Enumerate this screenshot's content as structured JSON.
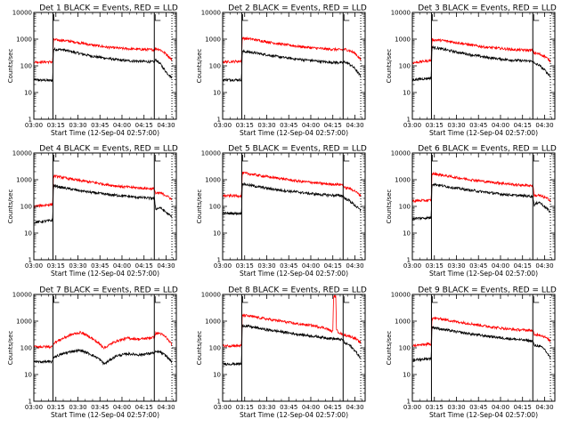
{
  "figure": {
    "description_title_template": "Det {n}  BLACK = Events, RED = LLD",
    "xlabel": "Start Time (12-Sep-04 02:57:00)",
    "ylabel": "Counts/sec",
    "xticks": [
      "03:00",
      "03:15",
      "03:30",
      "03:45",
      "04:00",
      "04:15",
      "04:30"
    ],
    "yticks": [
      "1",
      "10",
      "100",
      "1000",
      "10000"
    ],
    "colors": {
      "events": "#000000",
      "lld": "#ff0000",
      "axis": "#000000"
    }
  },
  "chart_data": [
    {
      "type": "line",
      "title": "Det 1  BLACK = Events, RED = LLD",
      "xlabel": "Start Time (12-Sep-04 02:57:00)",
      "ylabel": "Counts/sec",
      "x_unit": "minutes after 03:00",
      "xlim": [
        0,
        97
      ],
      "ylim": [
        1,
        10000
      ],
      "yscale": "log",
      "markers": [
        {
          "x": 13,
          "style": "solid"
        },
        {
          "x": 82,
          "style": "solid"
        },
        {
          "x": 94,
          "style": "dotted"
        }
      ],
      "series": [
        {
          "name": "Events",
          "color": "#000000",
          "x": [
            0,
            12.9,
            13.3,
            20,
            30,
            40,
            50,
            60,
            70,
            82,
            83,
            86,
            90,
            94
          ],
          "y": [
            30,
            28,
            420,
            400,
            300,
            230,
            190,
            160,
            150,
            140,
            170,
            120,
            60,
            35
          ]
        },
        {
          "name": "LLD",
          "color": "#ff0000",
          "x": [
            0,
            12.9,
            13.3,
            20,
            30,
            40,
            50,
            60,
            70,
            82,
            83,
            86,
            90,
            94
          ],
          "y": [
            140,
            140,
            950,
            900,
            750,
            600,
            500,
            450,
            420,
            400,
            450,
            400,
            280,
            170
          ]
        }
      ]
    },
    {
      "type": "line",
      "title": "Det 2  BLACK = Events, RED = LLD",
      "xlabel": "Start Time (12-Sep-04 02:57:00)",
      "ylabel": "Counts/sec",
      "x_unit": "minutes after 03:00",
      "xlim": [
        0,
        97
      ],
      "ylim": [
        1,
        10000
      ],
      "yscale": "log",
      "markers": [
        {
          "x": 13,
          "style": "solid"
        },
        {
          "x": 82,
          "style": "solid"
        },
        {
          "x": 94,
          "style": "dotted"
        }
      ],
      "series": [
        {
          "name": "Events",
          "color": "#000000",
          "x": [
            0,
            12.9,
            13.3,
            20,
            30,
            40,
            50,
            60,
            70,
            82,
            83,
            86,
            90,
            94
          ],
          "y": [
            30,
            30,
            350,
            320,
            260,
            210,
            180,
            160,
            140,
            130,
            140,
            120,
            80,
            40
          ]
        },
        {
          "name": "LLD",
          "color": "#ff0000",
          "x": [
            0,
            12.9,
            13.3,
            20,
            30,
            40,
            50,
            60,
            70,
            82,
            83,
            86,
            90,
            94
          ],
          "y": [
            140,
            150,
            1100,
            1000,
            800,
            650,
            550,
            480,
            430,
            400,
            420,
            380,
            300,
            170
          ]
        }
      ]
    },
    {
      "type": "line",
      "title": "Det 3  BLACK = Events, RED = LLD",
      "xlabel": "Start Time (12-Sep-04 02:57:00)",
      "ylabel": "Counts/sec",
      "x_unit": "minutes after 03:00",
      "xlim": [
        0,
        97
      ],
      "ylim": [
        1,
        10000
      ],
      "yscale": "log",
      "markers": [
        {
          "x": 13,
          "style": "solid"
        },
        {
          "x": 82,
          "style": "solid"
        },
        {
          "x": 94,
          "style": "dotted"
        }
      ],
      "series": [
        {
          "name": "Events",
          "color": "#000000",
          "x": [
            0,
            12.9,
            13.3,
            20,
            30,
            40,
            50,
            60,
            70,
            82,
            83,
            86,
            90,
            94
          ],
          "y": [
            30,
            35,
            500,
            430,
            330,
            260,
            210,
            180,
            160,
            150,
            120,
            110,
            70,
            40
          ]
        },
        {
          "name": "LLD",
          "color": "#ff0000",
          "x": [
            0,
            12.9,
            13.3,
            20,
            30,
            40,
            50,
            60,
            70,
            82,
            83,
            86,
            90,
            94
          ],
          "y": [
            130,
            160,
            950,
            900,
            750,
            600,
            500,
            450,
            400,
            380,
            300,
            280,
            230,
            150
          ]
        }
      ]
    },
    {
      "type": "line",
      "title": "Det 4  BLACK = Events, RED = LLD",
      "xlabel": "Start Time (12-Sep-04 02:57:00)",
      "ylabel": "Counts/sec",
      "x_unit": "minutes after 03:00",
      "xlim": [
        0,
        97
      ],
      "ylim": [
        1,
        10000
      ],
      "yscale": "log",
      "markers": [
        {
          "x": 13,
          "style": "solid"
        },
        {
          "x": 82,
          "style": "solid"
        },
        {
          "x": 94,
          "style": "dotted"
        }
      ],
      "series": [
        {
          "name": "Events",
          "color": "#000000",
          "x": [
            0,
            12.9,
            13.3,
            20,
            30,
            40,
            50,
            60,
            70,
            82,
            83,
            86,
            90,
            94
          ],
          "y": [
            25,
            30,
            600,
            500,
            400,
            330,
            280,
            250,
            220,
            200,
            80,
            90,
            60,
            40
          ]
        },
        {
          "name": "LLD",
          "color": "#ff0000",
          "x": [
            0,
            12.9,
            13.3,
            20,
            30,
            40,
            50,
            60,
            70,
            82,
            83,
            86,
            90,
            94
          ],
          "y": [
            100,
            120,
            1400,
            1200,
            950,
            800,
            650,
            550,
            500,
            450,
            300,
            320,
            260,
            180
          ]
        }
      ]
    },
    {
      "type": "line",
      "title": "Det 5  BLACK = Events, RED = LLD",
      "xlabel": "Start Time (12-Sep-04 02:57:00)",
      "ylabel": "Counts/sec",
      "x_unit": "minutes after 03:00",
      "xlim": [
        0,
        97
      ],
      "ylim": [
        1,
        10000
      ],
      "yscale": "log",
      "markers": [
        {
          "x": 13,
          "style": "solid"
        },
        {
          "x": 82,
          "style": "solid"
        },
        {
          "x": 94,
          "style": "dotted"
        }
      ],
      "series": [
        {
          "name": "Events",
          "color": "#000000",
          "x": [
            0,
            12.9,
            13.3,
            20,
            30,
            40,
            50,
            60,
            70,
            82,
            83,
            86,
            90,
            94
          ],
          "y": [
            55,
            55,
            700,
            600,
            480,
            400,
            350,
            300,
            270,
            250,
            200,
            170,
            110,
            70
          ]
        },
        {
          "name": "LLD",
          "color": "#ff0000",
          "x": [
            0,
            12.9,
            13.3,
            20,
            30,
            40,
            50,
            60,
            70,
            82,
            83,
            86,
            90,
            94
          ],
          "y": [
            250,
            250,
            1800,
            1600,
            1300,
            1100,
            900,
            800,
            700,
            650,
            500,
            480,
            380,
            250
          ]
        }
      ]
    },
    {
      "type": "line",
      "title": "Det 6  BLACK = Events, RED = LLD",
      "xlabel": "Start Time (12-Sep-04 02:57:00)",
      "ylabel": "Counts/sec",
      "x_unit": "minutes after 03:00",
      "xlim": [
        0,
        97
      ],
      "ylim": [
        1,
        10000
      ],
      "yscale": "log",
      "markers": [
        {
          "x": 13,
          "style": "solid"
        },
        {
          "x": 82,
          "style": "solid"
        },
        {
          "x": 94,
          "style": "dotted"
        }
      ],
      "series": [
        {
          "name": "Events",
          "color": "#000000",
          "x": [
            0,
            12.9,
            13.3,
            20,
            30,
            40,
            50,
            60,
            70,
            82,
            83,
            86,
            90,
            94
          ],
          "y": [
            35,
            38,
            700,
            600,
            480,
            400,
            340,
            290,
            260,
            240,
            110,
            150,
            100,
            60
          ]
        },
        {
          "name": "LLD",
          "color": "#ff0000",
          "x": [
            0,
            12.9,
            13.3,
            20,
            30,
            40,
            50,
            60,
            70,
            82,
            83,
            86,
            90,
            94
          ],
          "y": [
            160,
            170,
            1700,
            1500,
            1200,
            1000,
            850,
            750,
            650,
            600,
            250,
            260,
            220,
            170
          ]
        }
      ]
    },
    {
      "type": "line",
      "title": "Det 7  BLACK = Events, RED = LLD",
      "xlabel": "Start Time (12-Sep-04 02:57:00)",
      "ylabel": "Counts/sec",
      "x_unit": "minutes after 03:00",
      "xlim": [
        0,
        97
      ],
      "ylim": [
        1,
        10000
      ],
      "yscale": "log",
      "markers": [
        {
          "x": 13,
          "style": "solid"
        },
        {
          "x": 82,
          "style": "solid"
        },
        {
          "x": 94,
          "style": "dotted"
        }
      ],
      "series": [
        {
          "name": "Events",
          "color": "#000000",
          "x": [
            0,
            12.9,
            13.3,
            20,
            26,
            32,
            38,
            44,
            48,
            56,
            64,
            72,
            82,
            83,
            86,
            90,
            94
          ],
          "y": [
            30,
            30,
            45,
            60,
            75,
            80,
            60,
            40,
            25,
            50,
            60,
            55,
            65,
            70,
            70,
            50,
            30
          ]
        },
        {
          "name": "LLD",
          "color": "#ff0000",
          "x": [
            0,
            12.9,
            13.3,
            20,
            26,
            32,
            38,
            44,
            48,
            56,
            64,
            72,
            82,
            83,
            86,
            90,
            94
          ],
          "y": [
            110,
            110,
            150,
            230,
            320,
            380,
            260,
            150,
            100,
            180,
            230,
            210,
            250,
            350,
            350,
            250,
            130
          ]
        }
      ]
    },
    {
      "type": "line",
      "title": "Det 8  BLACK = Events, RED = LLD",
      "xlabel": "Start Time (12-Sep-04 02:57:00)",
      "ylabel": "Counts/sec",
      "x_unit": "minutes after 03:00",
      "xlim": [
        0,
        97
      ],
      "ylim": [
        1,
        10000
      ],
      "yscale": "log",
      "markers": [
        {
          "x": 13,
          "style": "solid"
        },
        {
          "x": 82,
          "style": "solid"
        },
        {
          "x": 94,
          "style": "dotted"
        }
      ],
      "series": [
        {
          "name": "Events",
          "color": "#000000",
          "x": [
            0,
            12.9,
            13.3,
            20,
            30,
            40,
            50,
            60,
            70,
            82,
            83,
            86,
            90,
            94
          ],
          "y": [
            25,
            25,
            700,
            600,
            480,
            400,
            330,
            280,
            240,
            200,
            150,
            130,
            80,
            40
          ]
        },
        {
          "name": "LLD",
          "color": "#ff0000",
          "x": [
            0,
            12.9,
            13.3,
            20,
            30,
            40,
            50,
            60,
            70,
            75,
            75.5,
            77,
            77.5,
            82,
            83,
            86,
            90,
            94
          ],
          "y": [
            120,
            120,
            1700,
            1500,
            1200,
            1000,
            800,
            700,
            550,
            400,
            8000,
            9000,
            450,
            300,
            300,
            280,
            230,
            150
          ]
        }
      ]
    },
    {
      "type": "line",
      "title": "Det 9  BLACK = Events, RED = LLD",
      "xlabel": "Start Time (12-Sep-04 02:57:00)",
      "ylabel": "Counts/sec",
      "x_unit": "minutes after 03:00",
      "xlim": [
        0,
        97
      ],
      "ylim": [
        1,
        10000
      ],
      "yscale": "log",
      "markers": [
        {
          "x": 13,
          "style": "solid"
        },
        {
          "x": 82,
          "style": "solid"
        },
        {
          "x": 94,
          "style": "dotted"
        }
      ],
      "series": [
        {
          "name": "Events",
          "color": "#000000",
          "x": [
            0,
            12.9,
            13.3,
            20,
            30,
            40,
            50,
            60,
            70,
            82,
            83,
            86,
            90,
            94
          ],
          "y": [
            35,
            40,
            600,
            500,
            400,
            330,
            280,
            240,
            210,
            180,
            120,
            120,
            90,
            40
          ]
        },
        {
          "name": "LLD",
          "color": "#ff0000",
          "x": [
            0,
            12.9,
            13.3,
            20,
            30,
            40,
            50,
            60,
            70,
            82,
            83,
            86,
            90,
            94
          ],
          "y": [
            120,
            140,
            1300,
            1200,
            950,
            800,
            650,
            550,
            480,
            450,
            300,
            320,
            260,
            180
          ]
        }
      ]
    }
  ]
}
